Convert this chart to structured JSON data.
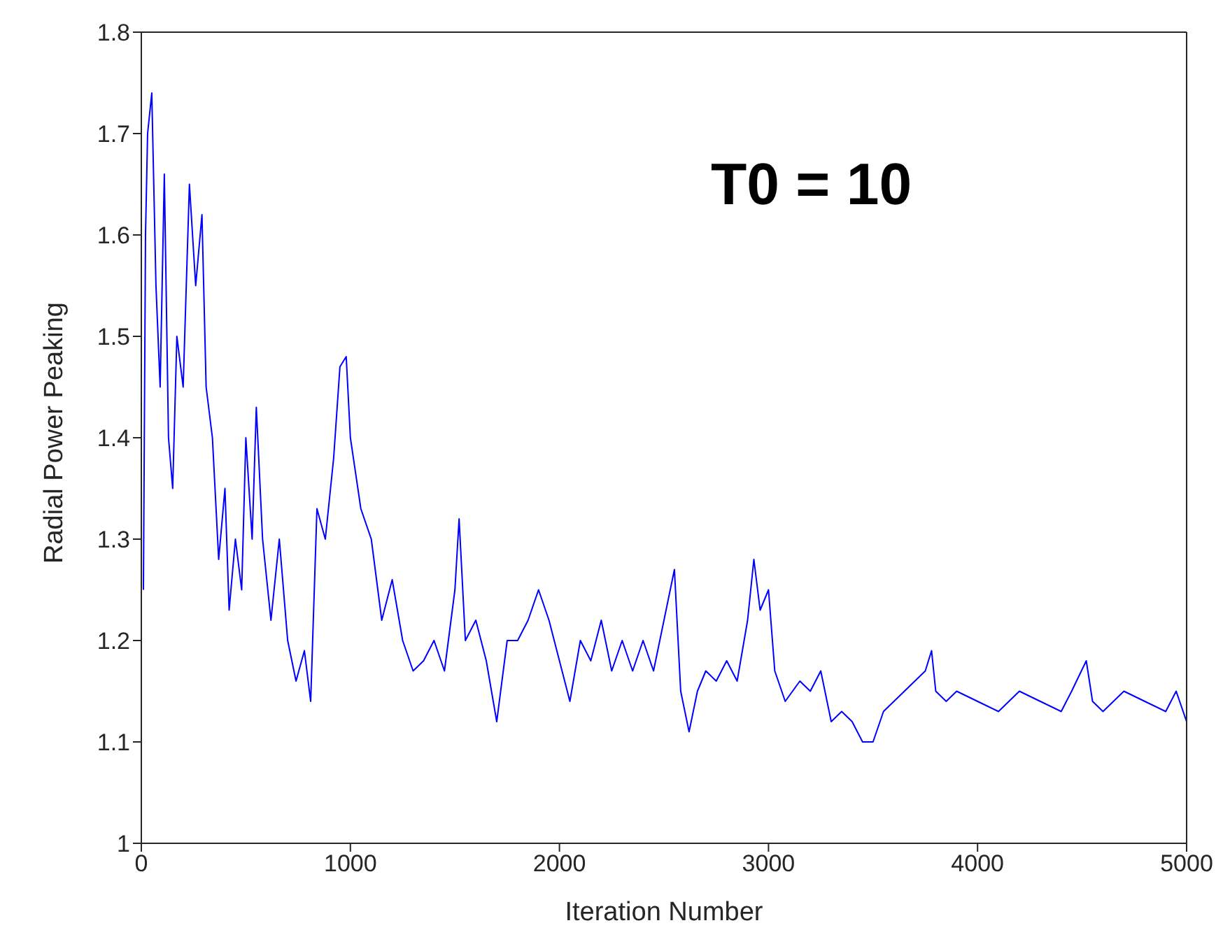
{
  "chart_data": {
    "type": "line",
    "xlabel": "Iteration Number",
    "ylabel": "Radial Power Peaking",
    "annotations": [
      "T0 = 10"
    ],
    "xlim": [
      0,
      5000
    ],
    "ylim": [
      1,
      1.8
    ],
    "xticks": [
      0,
      1000,
      2000,
      3000,
      4000,
      5000
    ],
    "yticks": [
      1,
      1.1,
      1.2,
      1.3,
      1.4,
      1.5,
      1.6,
      1.7,
      1.8
    ],
    "grid": false,
    "legend": false,
    "marker": "none",
    "line_style": "solid",
    "x": [
      10,
      20,
      30,
      50,
      70,
      90,
      110,
      130,
      150,
      170,
      200,
      230,
      260,
      290,
      310,
      340,
      370,
      400,
      420,
      450,
      480,
      500,
      530,
      550,
      580,
      620,
      660,
      700,
      740,
      780,
      810,
      840,
      880,
      920,
      950,
      980,
      1000,
      1050,
      1100,
      1150,
      1200,
      1250,
      1300,
      1350,
      1400,
      1450,
      1500,
      1520,
      1550,
      1600,
      1650,
      1700,
      1750,
      1800,
      1850,
      1900,
      1950,
      2000,
      2050,
      2100,
      2150,
      2200,
      2250,
      2300,
      2350,
      2400,
      2450,
      2500,
      2550,
      2580,
      2620,
      2660,
      2700,
      2750,
      2800,
      2850,
      2900,
      2930,
      2960,
      3000,
      3030,
      3080,
      3150,
      3200,
      3250,
      3300,
      3350,
      3400,
      3450,
      3500,
      3550,
      3600,
      3650,
      3700,
      3750,
      3780,
      3800,
      3850,
      3900,
      4000,
      4100,
      4200,
      4300,
      4400,
      4450,
      4520,
      4550,
      4600,
      4700,
      4800,
      4900,
      4950,
      5000
    ],
    "series": [
      {
        "color": "#0000ff",
        "values": [
          1.25,
          1.6,
          1.7,
          1.74,
          1.55,
          1.45,
          1.66,
          1.4,
          1.35,
          1.5,
          1.45,
          1.65,
          1.55,
          1.62,
          1.45,
          1.4,
          1.28,
          1.35,
          1.23,
          1.3,
          1.25,
          1.4,
          1.3,
          1.43,
          1.3,
          1.22,
          1.3,
          1.2,
          1.16,
          1.19,
          1.14,
          1.33,
          1.3,
          1.38,
          1.47,
          1.48,
          1.4,
          1.33,
          1.3,
          1.22,
          1.26,
          1.2,
          1.17,
          1.18,
          1.2,
          1.17,
          1.25,
          1.32,
          1.2,
          1.22,
          1.18,
          1.12,
          1.2,
          1.2,
          1.22,
          1.25,
          1.22,
          1.18,
          1.14,
          1.2,
          1.18,
          1.22,
          1.17,
          1.2,
          1.17,
          1.2,
          1.17,
          1.22,
          1.27,
          1.15,
          1.11,
          1.15,
          1.17,
          1.16,
          1.18,
          1.16,
          1.22,
          1.28,
          1.23,
          1.25,
          1.17,
          1.14,
          1.16,
          1.15,
          1.17,
          1.12,
          1.13,
          1.12,
          1.1,
          1.1,
          1.13,
          1.14,
          1.15,
          1.16,
          1.17,
          1.19,
          1.15,
          1.14,
          1.15,
          1.14,
          1.13,
          1.15,
          1.14,
          1.13,
          1.15,
          1.18,
          1.14,
          1.13,
          1.15,
          1.14,
          1.13,
          1.15,
          1.12
        ]
      }
    ]
  }
}
